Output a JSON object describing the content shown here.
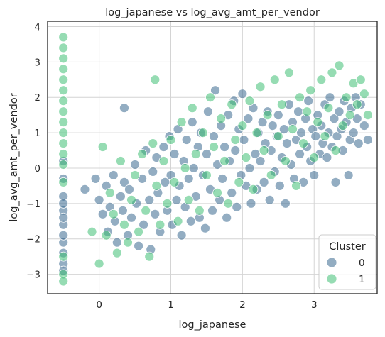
{
  "chart_data": {
    "type": "scatter",
    "title": "log_japanese vs log_avg_amt_per_vendor",
    "xlabel": "log_japanese",
    "ylabel": "log_avg_amt_per_vendor",
    "xlim": [
      -0.72,
      3.88
    ],
    "ylim": [
      -3.55,
      4.15
    ],
    "xticks": [
      0,
      1,
      2,
      3
    ],
    "yticks": [
      -3,
      -2,
      -1,
      0,
      1,
      2,
      3,
      4
    ],
    "grid": true,
    "legend": {
      "title": "Cluster",
      "placement": "bottom-right",
      "entries": [
        "0",
        "1"
      ]
    },
    "colors": {
      "0": "#3b6a8f",
      "1": "#3fbf75"
    },
    "series": [
      {
        "name": "0",
        "points": [
          [
            -0.5,
            -1.2
          ],
          [
            -0.5,
            -1.6
          ],
          [
            -0.5,
            -2.1
          ],
          [
            -0.5,
            -2.7
          ],
          [
            -0.5,
            -0.8
          ],
          [
            -0.5,
            -0.3
          ],
          [
            -0.5,
            0.2
          ],
          [
            -0.5,
            -1.9
          ],
          [
            -0.5,
            -2.4
          ],
          [
            -0.5,
            -1.0
          ],
          [
            -0.5,
            -1.4
          ],
          [
            -0.5,
            -2.9
          ],
          [
            -0.2,
            -0.6
          ],
          [
            -0.05,
            -0.3
          ],
          [
            0.0,
            -0.9
          ],
          [
            0.05,
            -1.3
          ],
          [
            0.1,
            -0.5
          ],
          [
            0.12,
            -1.8
          ],
          [
            0.15,
            -1.1
          ],
          [
            0.2,
            -0.2
          ],
          [
            0.22,
            -1.5
          ],
          [
            0.25,
            -2.1
          ],
          [
            0.3,
            -0.8
          ],
          [
            0.33,
            -1.2
          ],
          [
            0.35,
            -0.4
          ],
          [
            0.35,
            1.7
          ],
          [
            0.4,
            -1.9
          ],
          [
            0.42,
            -0.6
          ],
          [
            0.45,
            -1.4
          ],
          [
            0.5,
            0.1
          ],
          [
            0.52,
            -1.0
          ],
          [
            0.55,
            -2.2
          ],
          [
            0.6,
            -0.3
          ],
          [
            0.62,
            -1.6
          ],
          [
            0.65,
            0.5
          ],
          [
            0.7,
            -0.9
          ],
          [
            0.72,
            -2.3
          ],
          [
            0.75,
            -0.1
          ],
          [
            0.78,
            -1.3
          ],
          [
            0.8,
            0.3
          ],
          [
            0.82,
            -0.7
          ],
          [
            0.85,
            -1.8
          ],
          [
            0.9,
            0.6
          ],
          [
            0.92,
            -0.4
          ],
          [
            0.95,
            -1.2
          ],
          [
            0.98,
            0.9
          ],
          [
            1.0,
            -0.2
          ],
          [
            1.02,
            -1.6
          ],
          [
            1.05,
            0.4
          ],
          [
            1.08,
            -0.9
          ],
          [
            1.1,
            1.1
          ],
          [
            1.12,
            -0.5
          ],
          [
            1.15,
            -1.9
          ],
          [
            1.18,
            0.2
          ],
          [
            1.2,
            -1.1
          ],
          [
            1.22,
            0.8
          ],
          [
            1.25,
            -0.3
          ],
          [
            1.28,
            -1.5
          ],
          [
            1.3,
            1.3
          ],
          [
            1.32,
            0.0
          ],
          [
            1.35,
            -0.8
          ],
          [
            1.38,
            0.6
          ],
          [
            1.4,
            -1.4
          ],
          [
            1.42,
            1.0
          ],
          [
            1.45,
            -0.2
          ],
          [
            1.48,
            -1.7
          ],
          [
            1.5,
            0.4
          ],
          [
            1.52,
            1.6
          ],
          [
            1.55,
            -0.6
          ],
          [
            1.58,
            -1.2
          ],
          [
            1.6,
            0.9
          ],
          [
            1.62,
            2.2
          ],
          [
            1.65,
            0.1
          ],
          [
            1.68,
            -0.9
          ],
          [
            1.7,
            1.2
          ],
          [
            1.72,
            -0.3
          ],
          [
            1.75,
            0.6
          ],
          [
            1.78,
            -1.4
          ],
          [
            1.8,
            1.5
          ],
          [
            1.82,
            0.2
          ],
          [
            1.85,
            -0.7
          ],
          [
            1.88,
            1.9
          ],
          [
            1.9,
            0.5
          ],
          [
            1.92,
            -1.1
          ],
          [
            1.95,
            1.1
          ],
          [
            1.98,
            -0.2
          ],
          [
            2.0,
            2.1
          ],
          [
            2.02,
            0.8
          ],
          [
            2.05,
            -0.5
          ],
          [
            2.08,
            1.4
          ],
          [
            2.1,
            0.0
          ],
          [
            2.12,
            -1.0
          ],
          [
            2.15,
            1.7
          ],
          [
            2.18,
            0.4
          ],
          [
            2.2,
            -0.6
          ],
          [
            2.22,
            1.0
          ],
          [
            2.25,
            0.2
          ],
          [
            2.28,
            1.3
          ],
          [
            2.3,
            -0.4
          ],
          [
            2.32,
            0.7
          ],
          [
            2.35,
            1.6
          ],
          [
            2.38,
            -0.9
          ],
          [
            2.4,
            0.5
          ],
          [
            2.42,
            1.2
          ],
          [
            2.45,
            -0.1
          ],
          [
            2.48,
            0.9
          ],
          [
            2.5,
            1.5
          ],
          [
            2.52,
            -0.5
          ],
          [
            2.55,
            0.3
          ],
          [
            2.58,
            1.1
          ],
          [
            2.6,
            -1.0
          ],
          [
            2.62,
            0.7
          ],
          [
            2.65,
            1.8
          ],
          [
            2.68,
            0.1
          ],
          [
            2.7,
            1.3
          ],
          [
            2.72,
            -0.3
          ],
          [
            2.75,
            0.8
          ],
          [
            2.78,
            1.6
          ],
          [
            2.8,
            0.4
          ],
          [
            2.82,
            1.0
          ],
          [
            2.85,
            -0.4
          ],
          [
            2.88,
            1.4
          ],
          [
            2.9,
            0.6
          ],
          [
            2.92,
            1.9
          ],
          [
            2.95,
            0.2
          ],
          [
            2.98,
            1.1
          ],
          [
            3.0,
            -0.2
          ],
          [
            3.02,
            0.9
          ],
          [
            3.05,
            1.5
          ],
          [
            3.08,
            0.4
          ],
          [
            3.1,
            1.2
          ],
          [
            3.12,
            0.7
          ],
          [
            3.15,
            1.8
          ],
          [
            3.18,
            0.3
          ],
          [
            3.2,
            1.0
          ],
          [
            3.22,
            2.0
          ],
          [
            3.25,
            0.6
          ],
          [
            3.28,
            1.4
          ],
          [
            3.3,
            -0.4
          ],
          [
            3.32,
            0.9
          ],
          [
            3.35,
            1.6
          ],
          [
            3.38,
            1.1
          ],
          [
            3.4,
            0.5
          ],
          [
            3.42,
            1.9
          ],
          [
            3.45,
            1.3
          ],
          [
            3.48,
            -0.2
          ],
          [
            3.5,
            0.8
          ],
          [
            3.52,
            1.7
          ],
          [
            3.55,
            1.0
          ],
          [
            3.58,
            2.0
          ],
          [
            3.6,
            1.4
          ],
          [
            3.62,
            0.7
          ],
          [
            3.65,
            1.8
          ],
          [
            3.7,
            1.2
          ],
          [
            3.75,
            0.8
          ]
        ]
      },
      {
        "name": "1",
        "points": [
          [
            -0.5,
            3.7
          ],
          [
            -0.5,
            3.4
          ],
          [
            -0.5,
            3.1
          ],
          [
            -0.5,
            2.8
          ],
          [
            -0.5,
            2.5
          ],
          [
            -0.5,
            2.2
          ],
          [
            -0.5,
            1.9
          ],
          [
            -0.5,
            1.6
          ],
          [
            -0.5,
            1.3
          ],
          [
            -0.5,
            1.0
          ],
          [
            -0.5,
            0.7
          ],
          [
            -0.5,
            0.4
          ],
          [
            -0.5,
            0.1
          ],
          [
            -0.5,
            -0.4
          ],
          [
            -0.5,
            -2.5
          ],
          [
            -0.5,
            -3.0
          ],
          [
            -0.5,
            -3.2
          ],
          [
            -0.1,
            -1.8
          ],
          [
            0.0,
            -2.7
          ],
          [
            0.05,
            0.6
          ],
          [
            0.1,
            -1.9
          ],
          [
            0.15,
            -0.7
          ],
          [
            0.2,
            -1.3
          ],
          [
            0.25,
            -2.4
          ],
          [
            0.3,
            0.2
          ],
          [
            0.35,
            -1.6
          ],
          [
            0.4,
            -2.1
          ],
          [
            0.45,
            -0.9
          ],
          [
            0.5,
            -0.2
          ],
          [
            0.55,
            -1.8
          ],
          [
            0.6,
            0.4
          ],
          [
            0.65,
            -1.2
          ],
          [
            0.7,
            -2.5
          ],
          [
            0.75,
            0.7
          ],
          [
            0.78,
            2.5
          ],
          [
            0.8,
            -0.5
          ],
          [
            0.85,
            -1.6
          ],
          [
            0.9,
            0.2
          ],
          [
            0.95,
            -1.0
          ],
          [
            1.0,
            0.8
          ],
          [
            1.05,
            -0.4
          ],
          [
            1.1,
            -1.5
          ],
          [
            1.15,
            1.3
          ],
          [
            1.2,
            0.0
          ],
          [
            1.25,
            -0.9
          ],
          [
            1.3,
            1.7
          ],
          [
            1.35,
            0.4
          ],
          [
            1.4,
            -1.2
          ],
          [
            1.45,
            1.0
          ],
          [
            1.5,
            -0.2
          ],
          [
            1.55,
            2.0
          ],
          [
            1.6,
            0.6
          ],
          [
            1.65,
            -0.7
          ],
          [
            1.7,
            1.4
          ],
          [
            1.75,
            0.2
          ],
          [
            1.8,
            -1.0
          ],
          [
            1.85,
            1.8
          ],
          [
            1.9,
            0.8
          ],
          [
            1.95,
            -0.4
          ],
          [
            2.0,
            1.2
          ],
          [
            2.05,
            0.3
          ],
          [
            2.1,
            1.9
          ],
          [
            2.15,
            -0.6
          ],
          [
            2.2,
            1.0
          ],
          [
            2.25,
            2.3
          ],
          [
            2.3,
            0.5
          ],
          [
            2.35,
            1.5
          ],
          [
            2.4,
            -0.2
          ],
          [
            2.45,
            2.5
          ],
          [
            2.5,
            0.9
          ],
          [
            2.55,
            1.8
          ],
          [
            2.6,
            0.2
          ],
          [
            2.65,
            2.7
          ],
          [
            2.7,
            1.1
          ],
          [
            2.75,
            -0.5
          ],
          [
            2.8,
            2.0
          ],
          [
            2.85,
            0.7
          ],
          [
            2.9,
            1.6
          ],
          [
            2.95,
            2.2
          ],
          [
            3.0,
            0.3
          ],
          [
            3.05,
            1.3
          ],
          [
            3.1,
            2.5
          ],
          [
            3.15,
            0.9
          ],
          [
            3.2,
            1.7
          ],
          [
            3.25,
            2.7
          ],
          [
            3.3,
            0.5
          ],
          [
            3.35,
            2.9
          ],
          [
            3.4,
            1.2
          ],
          [
            3.45,
            2.0
          ],
          [
            3.5,
            1.5
          ],
          [
            3.55,
            2.4
          ],
          [
            3.6,
            1.8
          ],
          [
            3.65,
            2.5
          ],
          [
            3.7,
            2.1
          ],
          [
            3.75,
            1.5
          ]
        ]
      }
    ]
  }
}
